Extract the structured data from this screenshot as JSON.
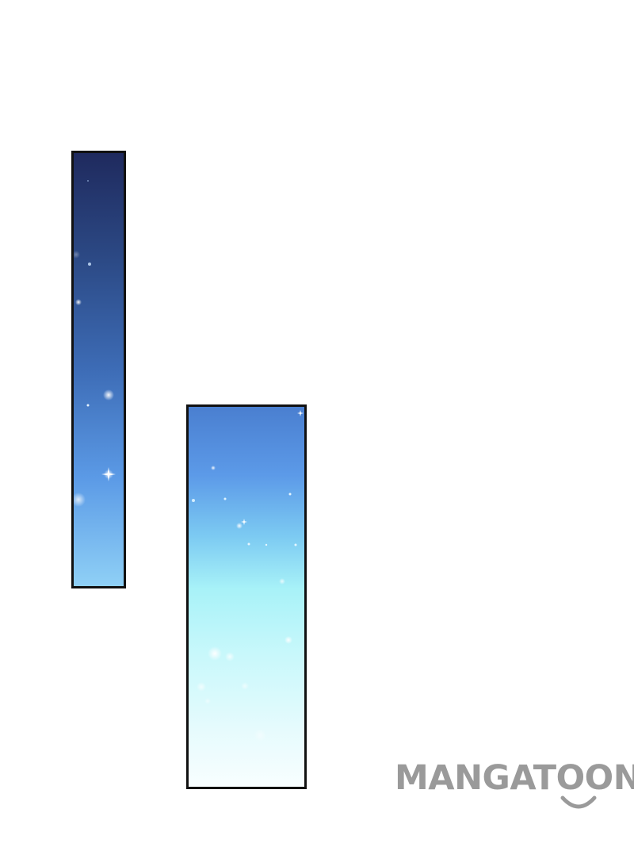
{
  "watermark": {
    "text": "MANGATOON",
    "color": "#9a9a9a",
    "icon": "smile-icon"
  },
  "panels": [
    {
      "name": "night-sky-panel-narrow",
      "top_color": "#1f2a5e",
      "bottom_color": "#8fd0f6"
    },
    {
      "name": "sky-panel-wide",
      "top_color": "#4a7fd0",
      "bottom_color": "#f8feff"
    }
  ],
  "colors": {
    "border": "#111111",
    "background": "#ffffff"
  }
}
